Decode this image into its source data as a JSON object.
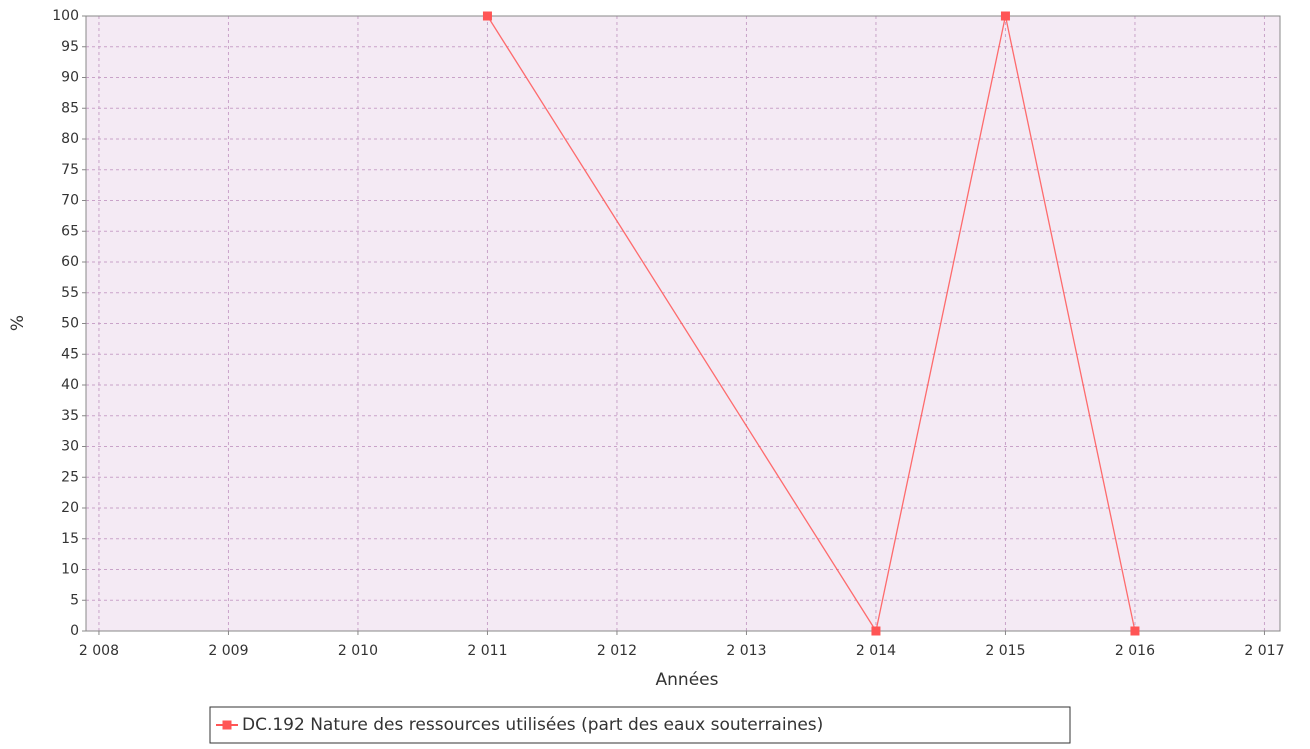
{
  "chart_data": {
    "type": "line",
    "xlabel": "Années",
    "ylabel": "%",
    "x": [
      2011,
      2014,
      2015,
      2016
    ],
    "series": [
      {
        "name": "DC.192 Nature des ressources utilisées (part des eaux souterraines)",
        "color": "#ff5555",
        "values": [
          100,
          0,
          100,
          0
        ]
      }
    ],
    "xlim": [
      2007.9,
      2017.12
    ],
    "xticks": [
      {
        "value": 2008,
        "label": "2 008"
      },
      {
        "value": 2009,
        "label": "2 009"
      },
      {
        "value": 2010,
        "label": "2 010"
      },
      {
        "value": 2011,
        "label": "2 011"
      },
      {
        "value": 2012,
        "label": "2 012"
      },
      {
        "value": 2013,
        "label": "2 013"
      },
      {
        "value": 2014,
        "label": "2 014"
      },
      {
        "value": 2015,
        "label": "2 015"
      },
      {
        "value": 2016,
        "label": "2 016"
      },
      {
        "value": 2017,
        "label": "2 017"
      }
    ],
    "ylim": [
      0,
      100
    ],
    "yticks": [
      0,
      5,
      10,
      15,
      20,
      25,
      30,
      35,
      40,
      45,
      50,
      55,
      60,
      65,
      70,
      75,
      80,
      85,
      90,
      95,
      100
    ],
    "grid": true,
    "legend": "bottom"
  }
}
